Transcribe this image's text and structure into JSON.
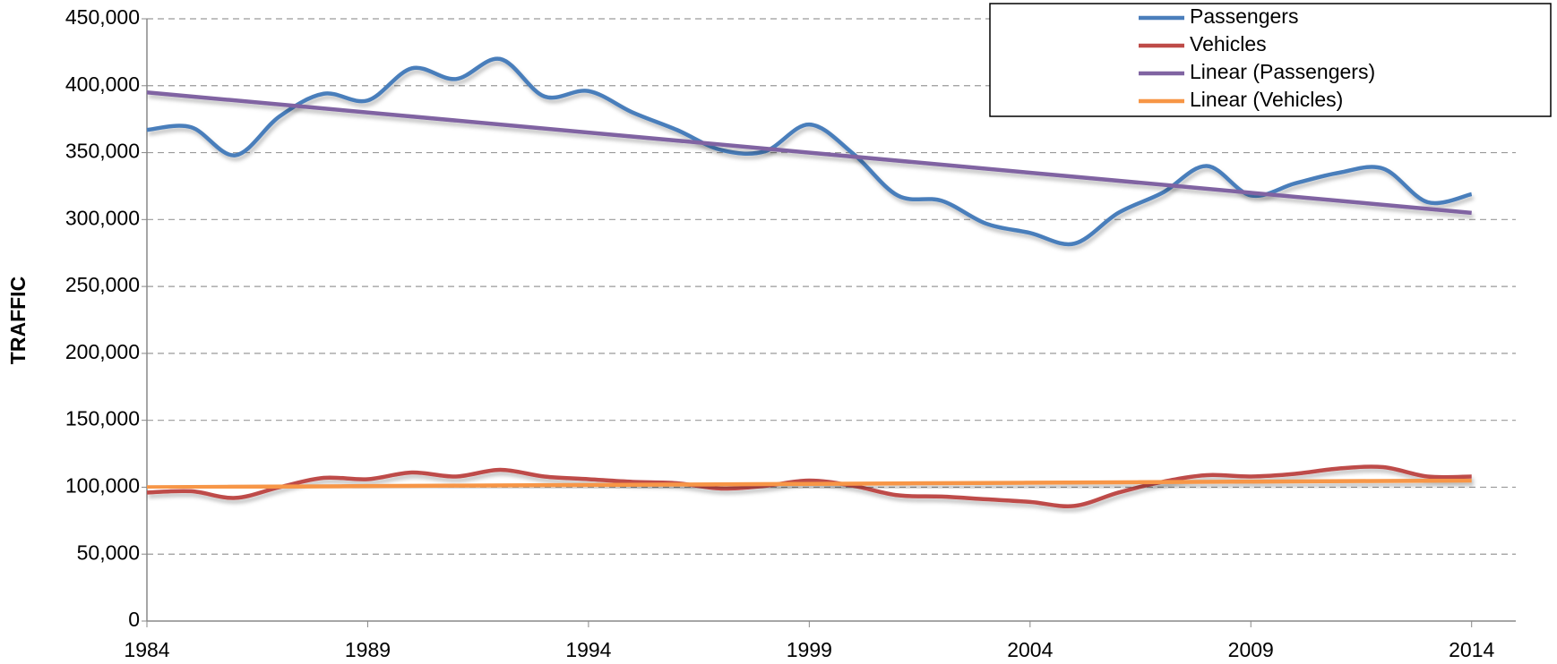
{
  "chart_data": {
    "type": "line",
    "y_label": "TRAFFIC",
    "x": [
      1984,
      1985,
      1986,
      1987,
      1988,
      1989,
      1990,
      1991,
      1992,
      1993,
      1994,
      1995,
      1996,
      1997,
      1998,
      1999,
      2000,
      2001,
      2002,
      2003,
      2004,
      2005,
      2006,
      2007,
      2008,
      2009,
      2010,
      2011,
      2012,
      2013,
      2014
    ],
    "series": [
      {
        "name": "Passengers",
        "color": "#4a7ebb",
        "smooth": true,
        "values": [
          367000,
          369000,
          348000,
          377000,
          394000,
          389000,
          413000,
          405000,
          420000,
          392000,
          396000,
          380000,
          367000,
          352000,
          351000,
          371000,
          349000,
          318000,
          314000,
          297000,
          290000,
          282000,
          305000,
          320000,
          340000,
          318000,
          327000,
          335000,
          338000,
          313000,
          319000
        ]
      },
      {
        "name": "Vehicles",
        "color": "#be4b48",
        "smooth": true,
        "values": [
          96000,
          97000,
          92000,
          100000,
          107000,
          106000,
          111000,
          108000,
          113000,
          108000,
          106000,
          104000,
          103000,
          99000,
          101000,
          105000,
          101000,
          94000,
          93000,
          91000,
          89000,
          86000,
          96000,
          104000,
          109000,
          108000,
          110000,
          114000,
          115000,
          108000,
          108000
        ]
      },
      {
        "name": "Linear (Passengers)",
        "color": "#8064a2",
        "x": [
          1984,
          2014
        ],
        "values": [
          395000,
          305000
        ]
      },
      {
        "name": "Linear (Vehicles)",
        "color": "#f79646",
        "x": [
          1984,
          2014
        ],
        "values": [
          100000,
          105000
        ]
      }
    ],
    "xlim": [
      1984,
      2015
    ],
    "xticks": [
      1984,
      1989,
      1994,
      1999,
      2004,
      2009,
      2014
    ],
    "ylim": [
      0,
      450000
    ],
    "yticks": [
      0,
      {
        "value": 50000,
        "label": "50,000"
      },
      {
        "value": 100000,
        "label": "100,000"
      },
      {
        "value": 150000,
        "label": "150,000"
      },
      {
        "value": 200000,
        "label": "200,000"
      },
      {
        "value": 250000,
        "label": "250,000"
      },
      {
        "value": 300000,
        "label": "300,000"
      },
      {
        "value": 350000,
        "label": "350,000"
      },
      {
        "value": 400000,
        "label": "400,000"
      },
      {
        "value": 450000,
        "label": "450,000"
      }
    ],
    "grid": true,
    "legend": "top-right"
  }
}
